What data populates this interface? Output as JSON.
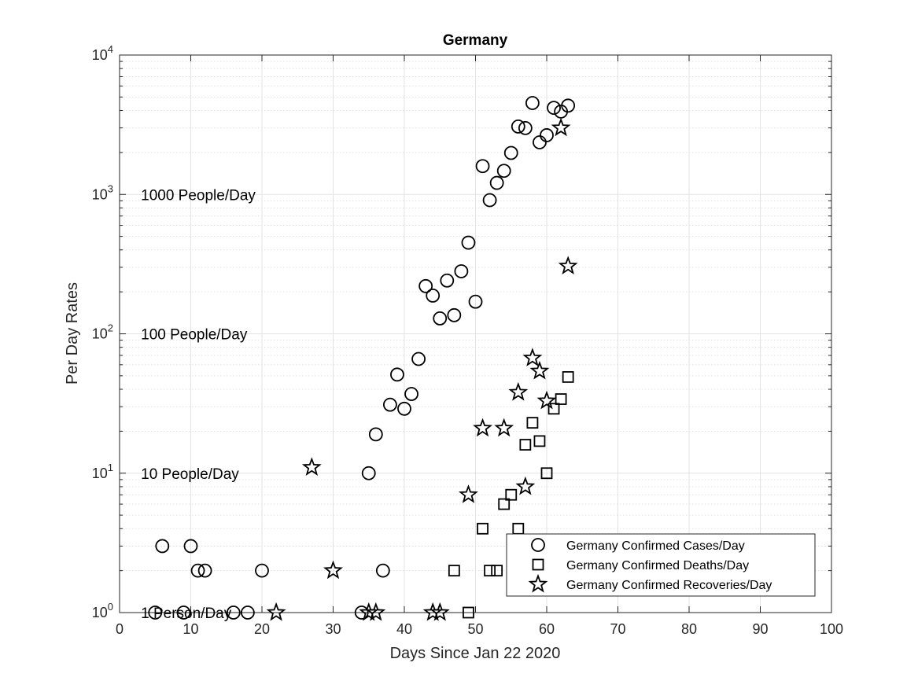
{
  "chart_data": {
    "type": "scatter",
    "title": "Germany",
    "xlabel": "Days Since Jan 22 2020",
    "ylabel": "Per Day Rates",
    "xlim": [
      0,
      100
    ],
    "ylim": [
      1,
      10000
    ],
    "yscale": "log",
    "grid": true,
    "minor_grid": true,
    "x_ticks": [
      0,
      10,
      20,
      30,
      40,
      50,
      60,
      70,
      80,
      90,
      100
    ],
    "y_ticks": [
      {
        "base": "10",
        "exp": "0",
        "value": 1
      },
      {
        "base": "10",
        "exp": "1",
        "value": 10
      },
      {
        "base": "10",
        "exp": "2",
        "value": 100
      },
      {
        "base": "10",
        "exp": "3",
        "value": 1000
      },
      {
        "base": "10",
        "exp": "4",
        "value": 10000
      }
    ],
    "annotations": [
      {
        "text": "1 Person/Day",
        "x": 3,
        "y": 1
      },
      {
        "text": "10 People/Day",
        "x": 3,
        "y": 10
      },
      {
        "text": "100 People/Day",
        "x": 3,
        "y": 100
      },
      {
        "text": "1000 People/Day",
        "x": 3,
        "y": 1000
      }
    ],
    "legend_position": "bottom-right",
    "series": [
      {
        "name": "Germany Confirmed Cases/Day",
        "marker": "circle",
        "points": [
          [
            5,
            1
          ],
          [
            6,
            3
          ],
          [
            9,
            1
          ],
          [
            10,
            3
          ],
          [
            11,
            2
          ],
          [
            12,
            2
          ],
          [
            16,
            1
          ],
          [
            18,
            1
          ],
          [
            20,
            2
          ],
          [
            34,
            1
          ],
          [
            35,
            10
          ],
          [
            36,
            19
          ],
          [
            37,
            2
          ],
          [
            38,
            31
          ],
          [
            39,
            51
          ],
          [
            40,
            29
          ],
          [
            41,
            37
          ],
          [
            42,
            66
          ],
          [
            43,
            220
          ],
          [
            44,
            188
          ],
          [
            45,
            129
          ],
          [
            46,
            241
          ],
          [
            47,
            136
          ],
          [
            48,
            281
          ],
          [
            49,
            451
          ],
          [
            50,
            170
          ],
          [
            51,
            1597
          ],
          [
            52,
            910
          ],
          [
            53,
            1210
          ],
          [
            54,
            1477
          ],
          [
            55,
            1985
          ],
          [
            56,
            3070
          ],
          [
            57,
            2993
          ],
          [
            58,
            4528
          ],
          [
            59,
            2365
          ],
          [
            60,
            2660
          ],
          [
            61,
            4183
          ],
          [
            62,
            3930
          ],
          [
            63,
            4337
          ]
        ]
      },
      {
        "name": "Germany Confirmed Deaths/Day",
        "marker": "square",
        "points": [
          [
            47,
            2
          ],
          [
            49,
            1
          ],
          [
            51,
            4
          ],
          [
            52,
            2
          ],
          [
            53,
            2
          ],
          [
            54,
            6
          ],
          [
            55,
            7
          ],
          [
            56,
            4
          ],
          [
            57,
            16
          ],
          [
            58,
            23
          ],
          [
            59,
            17
          ],
          [
            60,
            10
          ],
          [
            61,
            29
          ],
          [
            62,
            34
          ],
          [
            63,
            49
          ]
        ]
      },
      {
        "name": "Germany Confirmed Recoveries/Day",
        "marker": "star",
        "points": [
          [
            22,
            1
          ],
          [
            27,
            11
          ],
          [
            30,
            2
          ],
          [
            35,
            1
          ],
          [
            36,
            1
          ],
          [
            44,
            1
          ],
          [
            45,
            1
          ],
          [
            49,
            7
          ],
          [
            51,
            21
          ],
          [
            54,
            21
          ],
          [
            56,
            38
          ],
          [
            57,
            8
          ],
          [
            58,
            67
          ],
          [
            59,
            54
          ],
          [
            60,
            33
          ],
          [
            62,
            3000
          ],
          [
            63,
            306
          ]
        ]
      }
    ]
  }
}
